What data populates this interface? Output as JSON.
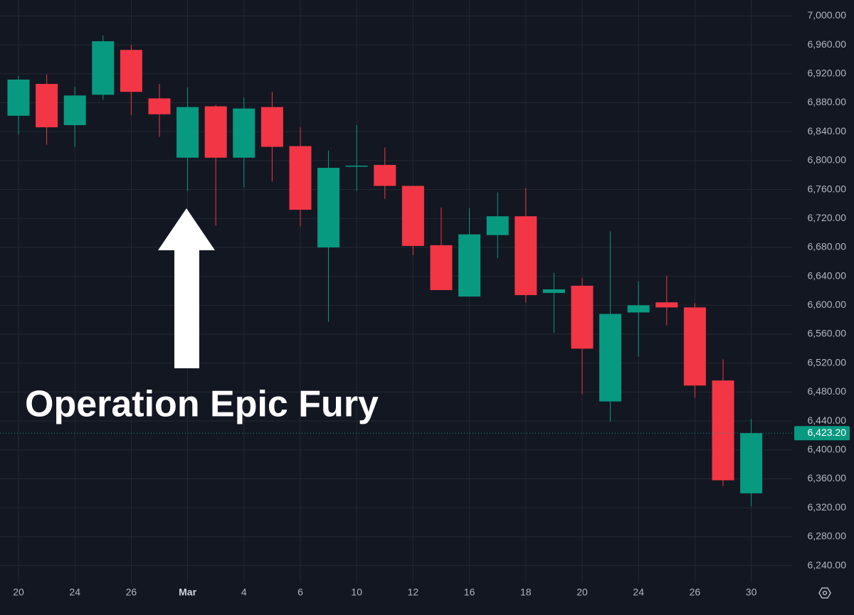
{
  "chart_data": {
    "type": "candlestick",
    "annotation": "Operation Epic Fury",
    "categories": [
      "20",
      null,
      "24",
      null,
      "26",
      null,
      "Mar",
      null,
      "4",
      null,
      "6",
      null,
      "10",
      null,
      "12",
      null,
      "16",
      null,
      "18",
      null,
      "20",
      null,
      "24",
      null,
      "26",
      null,
      "30"
    ],
    "open": [
      6862,
      6906,
      6849,
      6891,
      6953,
      6886,
      6804,
      6875,
      6804,
      6874,
      6820,
      6680,
      6792,
      6794,
      6765,
      6683,
      6612,
      6697,
      6723,
      6617,
      6627,
      6467,
      6590,
      6604,
      6597,
      6496,
      6340
    ],
    "high": [
      6917,
      6919,
      6902,
      6973,
      6960,
      6906,
      6901,
      6877,
      6887,
      6895,
      6846,
      6814,
      6849,
      6818,
      6765,
      6735,
      6734,
      6756,
      6762,
      6645,
      6638,
      6702,
      6633,
      6641,
      6603,
      6525,
      6443
    ],
    "low": [
      6836,
      6822,
      6819,
      6884,
      6863,
      6833,
      6758,
      6710,
      6763,
      6771,
      6709,
      6577,
      6758,
      6747,
      6669,
      6621,
      6612,
      6665,
      6604,
      6562,
      6477,
      6439,
      6529,
      6572,
      6472,
      6350,
      6322
    ],
    "close": [
      6912,
      6846,
      6890,
      6965,
      6895,
      6864,
      6874,
      6804,
      6872,
      6819,
      6732,
      6790,
      6793,
      6765,
      6682,
      6621,
      6698,
      6723,
      6614,
      6622,
      6540,
      6588,
      6600,
      6597,
      6489,
      6358,
      6423.2
    ],
    "up_color": "#089981",
    "down_color": "#f23645",
    "ylim": [
      6216,
      7022
    ],
    "yticks": [
      {
        "value": 6240,
        "label": "6,240.00"
      },
      {
        "value": 6280,
        "label": "6,280.00"
      },
      {
        "value": 6320,
        "label": "6,320.00"
      },
      {
        "value": 6360,
        "label": "6,360.00"
      },
      {
        "value": 6400,
        "label": "6,400.00"
      },
      {
        "value": 6440,
        "label": "6,440.00"
      },
      {
        "value": 6480,
        "label": "6,480.00"
      },
      {
        "value": 6520,
        "label": "6,520.00"
      },
      {
        "value": 6560,
        "label": "6,560.00"
      },
      {
        "value": 6600,
        "label": "6,600.00"
      },
      {
        "value": 6640,
        "label": "6,640.00"
      },
      {
        "value": 6680,
        "label": "6,680.00"
      },
      {
        "value": 6720,
        "label": "6,720.00"
      },
      {
        "value": 6760,
        "label": "6,760.00"
      },
      {
        "value": 6800,
        "label": "6,800.00"
      },
      {
        "value": 6840,
        "label": "6,840.00"
      },
      {
        "value": 6880,
        "label": "6,880.00"
      },
      {
        "value": 6920,
        "label": "6,920.00"
      },
      {
        "value": 6960,
        "label": "6,960.00"
      },
      {
        "value": 7000,
        "label": "7,000.00"
      }
    ],
    "last_price": {
      "value": 6423.2,
      "label": "6,423.20"
    },
    "grid": true
  }
}
